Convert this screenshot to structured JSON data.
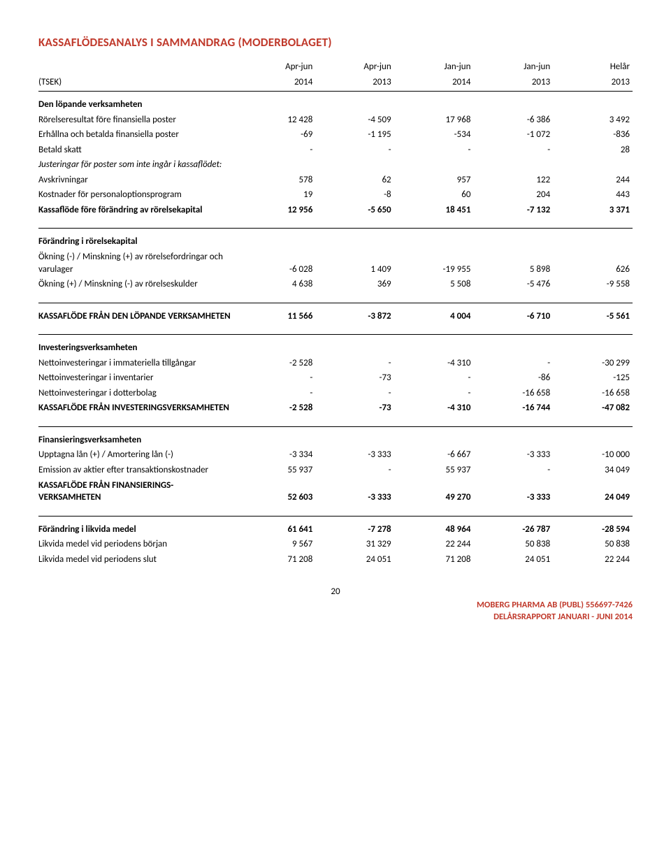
{
  "title_color": "#c0392b",
  "title": "KASSAFLÖDESANALYS I SAMMANDRAG (MODERBOLAGET)",
  "header": {
    "row_label": "(TSEK)",
    "periods_top": [
      "Apr-jun",
      "Apr-jun",
      "Jan-jun",
      "Jan-jun",
      "Helår"
    ],
    "periods_bot": [
      "2014",
      "2013",
      "2014",
      "2013",
      "2013"
    ]
  },
  "sections": [
    {
      "rows": [
        {
          "label": "Den löpande verksamheten",
          "bold": true,
          "section_start": true
        },
        {
          "label": "Rörelseresultat före finansiella poster",
          "v": [
            "12 428",
            "-4 509",
            "17 968",
            "-6 386",
            "3 492"
          ]
        },
        {
          "label": "Erhållna och betalda finansiella poster",
          "v": [
            "-69",
            "-1 195",
            "-534",
            "-1 072",
            "-836"
          ]
        },
        {
          "label": "Betald skatt",
          "v": [
            "-",
            "-",
            "-",
            "-",
            "28"
          ]
        },
        {
          "label": "Justeringar för poster som inte ingår i kassaflödet:",
          "italic": true
        },
        {
          "label": "Avskrivningar",
          "v": [
            "578",
            "62",
            "957",
            "122",
            "244"
          ]
        },
        {
          "label": "Kostnader för personaloptionsprogram",
          "v": [
            "19",
            "-8",
            "60",
            "204",
            "443"
          ]
        },
        {
          "label": "Kassaflöde före förändring av rörelsekapital",
          "bold": true,
          "v": [
            "12 956",
            "-5 650",
            "18 451",
            "-7 132",
            "3 371"
          ]
        }
      ],
      "sep_after": true
    },
    {
      "rows": [
        {
          "label": "Förändring i rörelsekapital",
          "bold": true,
          "section_start": true
        },
        {
          "label": "Ökning (-) / Minskning (+) av rörelsefordringar och varulager",
          "v": [
            "-6 028",
            "1 409",
            "-19 955",
            "5 898",
            "626"
          ]
        },
        {
          "label": "Ökning (+) / Minskning (-) av rörelseskulder",
          "v": [
            "4 638",
            "369",
            "5 508",
            "-5 476",
            "-9 558"
          ]
        }
      ],
      "sep_after": true
    },
    {
      "rows": [
        {
          "label": "KASSAFLÖDE FRÅN DEN LÖPANDE VERKSAMHETEN",
          "bold": true,
          "section_start": true,
          "v": [
            "11 566",
            "-3 872",
            "4 004",
            "-6 710",
            "-5 561"
          ]
        }
      ],
      "sep_after": true
    },
    {
      "rows": [
        {
          "label": "Investeringsverksamheten",
          "bold": true,
          "section_start": true
        },
        {
          "label": "Nettoinvesteringar i immateriella tillgångar",
          "v": [
            "-2 528",
            "-",
            "-4 310",
            "-",
            "-30 299"
          ]
        },
        {
          "label": "Nettoinvesteringar i inventarier",
          "v": [
            "-",
            "-73",
            "-",
            "-86",
            "-125"
          ]
        },
        {
          "label": "Nettoinvesteringar i dotterbolag",
          "v": [
            "-",
            "-",
            "-",
            "-16 658",
            "-16 658"
          ]
        },
        {
          "label": "KASSAFLÖDE FRÅN INVESTERINGSVERKSAMHETEN",
          "bold": true,
          "v": [
            "-2 528",
            "-73",
            "-4 310",
            "-16 744",
            "-47 082"
          ]
        }
      ],
      "sep_after": true
    },
    {
      "rows": [
        {
          "label": "Finansieringsverksamheten",
          "bold": true,
          "section_start": true
        },
        {
          "label": "Upptagna lån (+) / Amortering lån (-)",
          "v": [
            "-3 334",
            "-3 333",
            "-6 667",
            "-3 333",
            "-10 000"
          ]
        },
        {
          "label": "Emission av aktier efter transaktionskostnader",
          "v": [
            "55 937",
            "-",
            "55 937",
            "-",
            "34 049"
          ]
        },
        {
          "label": "KASSAFLÖDE FRÅN FINANSIERINGS-VERKSAMHETEN",
          "bold": true,
          "v": [
            "52 603",
            "-3 333",
            "49 270",
            "-3 333",
            "24 049"
          ]
        }
      ],
      "sep_after": true
    },
    {
      "rows": [
        {
          "label": "Förändring i likvida medel",
          "bold": true,
          "section_start": true,
          "v": [
            "61 641",
            "-7 278",
            "48 964",
            "-26 787",
            "-28 594"
          ]
        },
        {
          "label": "Likvida medel vid periodens början",
          "v": [
            "9 567",
            "31 329",
            "22 244",
            "50 838",
            "50 838"
          ]
        },
        {
          "label": "Likvida medel vid periodens slut",
          "v": [
            "71 208",
            "24 051",
            "71 208",
            "24 051",
            "22 244"
          ]
        }
      ],
      "sep_after": false
    }
  ],
  "footer": {
    "page": "20",
    "line1": "MOBERG PHARMA AB (PUBL) 556697-7426",
    "line2": "DELÅRSRAPPORT JANUARI - JUNI 2014",
    "color": "#c0392b"
  }
}
